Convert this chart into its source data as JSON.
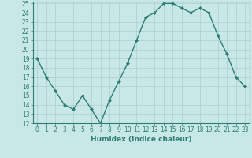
{
  "x": [
    0,
    1,
    2,
    3,
    4,
    5,
    6,
    7,
    8,
    9,
    10,
    11,
    12,
    13,
    14,
    15,
    16,
    17,
    18,
    19,
    20,
    21,
    22,
    23
  ],
  "y": [
    19,
    17,
    15.5,
    14,
    13.5,
    15,
    13.5,
    12,
    14.5,
    16.5,
    18.5,
    21,
    23.5,
    24,
    25,
    25,
    24.5,
    24,
    24.5,
    24,
    21.5,
    19.5,
    17,
    16
  ],
  "line_color": "#2e7d6e",
  "marker": "D",
  "marker_size": 2.0,
  "bg_color": "#c8e8e8",
  "grid_color": "#aacece",
  "xlabel": "Humidex (Indice chaleur)",
  "xlim": [
    -0.5,
    23.5
  ],
  "ylim": [
    12,
    25.2
  ],
  "yticks": [
    12,
    13,
    14,
    15,
    16,
    17,
    18,
    19,
    20,
    21,
    22,
    23,
    24,
    25
  ],
  "xticks": [
    0,
    1,
    2,
    3,
    4,
    5,
    6,
    7,
    8,
    9,
    10,
    11,
    12,
    13,
    14,
    15,
    16,
    17,
    18,
    19,
    20,
    21,
    22,
    23
  ],
  "tick_fontsize": 5.5,
  "label_fontsize": 6.5,
  "line_width": 1.0
}
